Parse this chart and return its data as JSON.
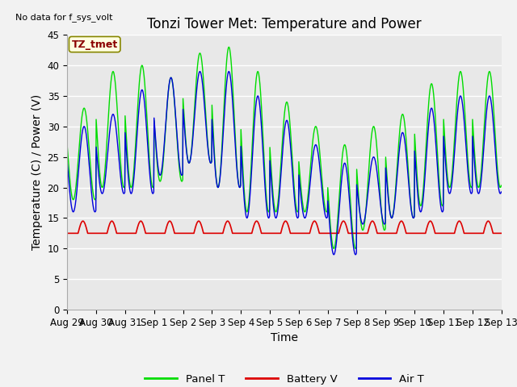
{
  "title": "Tonzi Tower Met: Temperature and Power",
  "ylabel": "Temperature (C) / Power (V)",
  "xlabel": "Time",
  "no_data_text": "No data for f_sys_volt",
  "annotation_text": "TZ_tmet",
  "ylim": [
    0,
    45
  ],
  "yticks": [
    0,
    5,
    10,
    15,
    20,
    25,
    30,
    35,
    40,
    45
  ],
  "xtick_labels": [
    "Aug 29",
    "Aug 30",
    "Aug 31",
    "Sep 1",
    "Sep 2",
    "Sep 3",
    "Sep 4",
    "Sep 5",
    "Sep 6",
    "Sep 7",
    "Sep 8",
    "Sep 9",
    "Sep 10",
    "Sep 11",
    "Sep 12",
    "Sep 13"
  ],
  "panel_color": "#00dd00",
  "battery_color": "#dd0000",
  "air_color": "#0000dd",
  "plot_bg_color": "#e8e8e8",
  "fig_bg_color": "#f2f2f2",
  "legend_labels": [
    "Panel T",
    "Battery V",
    "Air T"
  ],
  "title_fontsize": 12,
  "axis_fontsize": 10,
  "tick_fontsize": 8.5,
  "panel_peaks": [
    33,
    39,
    40,
    38,
    42,
    43,
    39,
    34,
    30,
    27,
    30,
    32,
    37,
    39,
    39
  ],
  "air_peaks": [
    30,
    32,
    36,
    38,
    39,
    39,
    35,
    31,
    27,
    24,
    25,
    29,
    33,
    35,
    35
  ],
  "panel_mins": [
    18,
    20,
    20,
    21,
    24,
    20,
    16,
    16,
    16,
    10,
    13,
    15,
    17,
    20,
    20
  ],
  "air_mins": [
    16,
    19,
    19,
    22,
    24,
    20,
    15,
    15,
    15,
    9,
    14,
    15,
    16,
    19,
    19
  ],
  "battery_base": 12.5,
  "battery_bump": 2.0,
  "n_days": 15,
  "dt_hours": 0.25
}
